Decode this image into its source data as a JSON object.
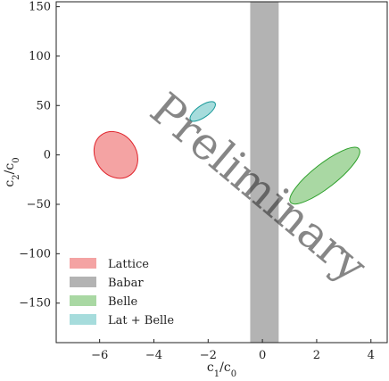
{
  "chart_data": {
    "type": "scatter",
    "xlabel": "c1/c0",
    "ylabel": "c2/c0",
    "xlim": [
      -7.6,
      4.6
    ],
    "ylim": [
      -190,
      155
    ],
    "xticks": [
      -6,
      -4,
      -2,
      0,
      2,
      4
    ],
    "yticks": [
      -150,
      -100,
      -50,
      0,
      50,
      100,
      150
    ],
    "xtick_labels": [
      "−6",
      "−4",
      "−2",
      "0",
      "2",
      "4"
    ],
    "ytick_labels": [
      "−150",
      "−100",
      "−50",
      "0",
      "50",
      "100",
      "150"
    ],
    "grid": false,
    "legend_position": "lower-left",
    "watermark": "Preliminary",
    "series": [
      {
        "name": "Lattice",
        "kind": "ellipse",
        "center": [
          -5.4,
          0
        ],
        "semi_axes": [
          0.75,
          25
        ],
        "rotation_deg": -35,
        "fill": "#f4a3a3",
        "edge": "#e0242c"
      },
      {
        "name": "Babar",
        "kind": "band",
        "x_range": [
          -0.45,
          0.6
        ],
        "fill": "#b3b3b3"
      },
      {
        "name": "Belle",
        "kind": "ellipse",
        "center": [
          2.3,
          -21
        ],
        "semi_axes": [
          1.6,
          12
        ],
        "rotation_deg": -38,
        "fill": "#a9d8a3",
        "edge": "#2ea02c"
      },
      {
        "name": "Lat + Belle",
        "kind": "ellipse",
        "center": [
          -2.2,
          44
        ],
        "semi_axes": [
          0.55,
          6
        ],
        "rotation_deg": -35,
        "fill": "#a6dcdc",
        "edge": "#1a9a9a"
      }
    ]
  }
}
